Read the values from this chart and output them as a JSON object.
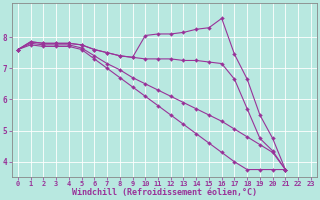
{
  "bg_color": "#b8e8e0",
  "grid_color": "#ffffff",
  "line_color": "#993399",
  "spine_color": "#888888",
  "xlabel": "Windchill (Refroidissement éolien,°C)",
  "xlim": [
    -0.5,
    23.5
  ],
  "ylim": [
    3.5,
    9.1
  ],
  "yticks": [
    4,
    5,
    6,
    7,
    8
  ],
  "xticks": [
    0,
    1,
    2,
    3,
    4,
    5,
    6,
    7,
    8,
    9,
    10,
    11,
    12,
    13,
    14,
    15,
    16,
    17,
    18,
    19,
    20,
    21,
    22,
    23
  ],
  "series": [
    [
      7.6,
      7.85,
      7.8,
      7.8,
      7.8,
      7.75,
      7.6,
      7.5,
      7.4,
      7.35,
      7.3,
      7.3,
      7.3,
      7.25,
      7.25,
      7.2,
      7.15,
      6.65,
      5.7,
      4.75,
      4.35,
      3.75
    ],
    [
      7.6,
      7.85,
      7.8,
      7.8,
      7.8,
      7.75,
      7.6,
      7.5,
      7.4,
      7.35,
      8.05,
      8.1,
      8.1,
      8.15,
      8.25,
      8.3,
      8.6,
      7.45,
      6.65,
      5.5,
      4.75,
      3.75
    ],
    [
      7.6,
      7.8,
      7.75,
      7.75,
      7.75,
      7.65,
      7.4,
      7.15,
      6.95,
      6.7,
      6.5,
      6.3,
      6.1,
      5.9,
      5.7,
      5.5,
      5.3,
      5.05,
      4.8,
      4.55,
      4.3,
      3.75
    ],
    [
      7.6,
      7.75,
      7.7,
      7.7,
      7.7,
      7.6,
      7.3,
      7.0,
      6.7,
      6.4,
      6.1,
      5.8,
      5.5,
      5.2,
      4.9,
      4.6,
      4.3,
      4.0,
      3.75,
      3.75,
      3.75,
      3.75
    ]
  ],
  "marker": "D",
  "markersize": 2.0,
  "linewidth": 0.8,
  "tick_fontsize": 5.0,
  "label_fontsize": 6.0
}
